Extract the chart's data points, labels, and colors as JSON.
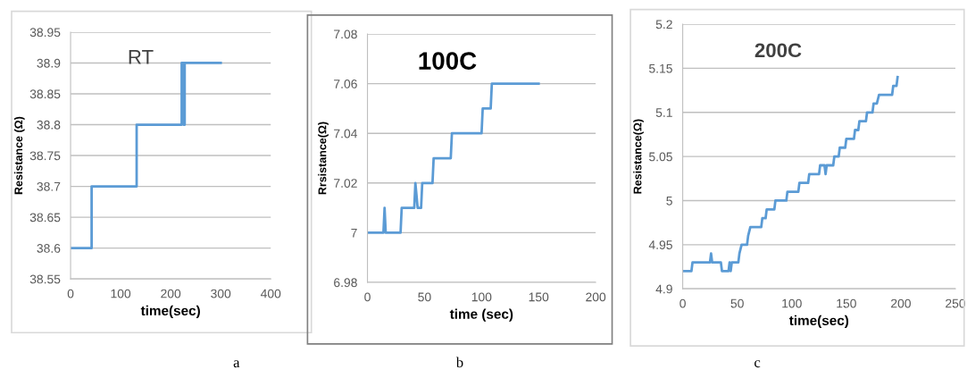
{
  "chart_data": [
    {
      "type": "line",
      "title": "RT",
      "xlabel": "time(sec)",
      "ylabel": "Resistance (Ω)",
      "annotations": [
        "a"
      ],
      "grid": "y",
      "legend": false,
      "marker": "none",
      "line_style": "solid",
      "xlim": [
        0,
        400
      ],
      "xticks": [
        0,
        100,
        200,
        300,
        400
      ],
      "ylim": [
        38.55,
        38.95
      ],
      "yticks": [
        38.55,
        38.6,
        38.65,
        38.7,
        38.75,
        38.8,
        38.85,
        38.9,
        38.95
      ],
      "series": [
        {
          "color": "#5b9bd5",
          "x": [
            0,
            42,
            42,
            132,
            132,
            222,
            222,
            226,
            226,
            228,
            228,
            300
          ],
          "values": [
            38.6,
            38.6,
            38.7,
            38.7,
            38.8,
            38.8,
            38.9,
            38.9,
            38.8,
            38.8,
            38.9,
            38.9
          ]
        }
      ]
    },
    {
      "type": "line",
      "title": "100C",
      "xlabel": "time (sec)",
      "ylabel": "Rrsistance(Ω)",
      "annotations": [
        "b"
      ],
      "grid": "y",
      "legend": false,
      "marker": "none",
      "line_style": "solid",
      "xlim": [
        0,
        200
      ],
      "xticks": [
        0,
        50,
        100,
        150,
        200
      ],
      "ylim": [
        6.98,
        7.08
      ],
      "yticks": [
        6.98,
        7,
        7.02,
        7.04,
        7.06,
        7.08
      ],
      "series": [
        {
          "color": "#5b9bd5",
          "x": [
            0,
            14,
            15,
            16,
            29,
            30,
            41,
            42,
            44,
            47,
            48,
            57,
            58,
            73,
            74,
            100,
            101,
            108,
            109,
            150
          ],
          "values": [
            7,
            7,
            7.01,
            7,
            7,
            7.01,
            7.01,
            7.02,
            7.01,
            7.01,
            7.02,
            7.02,
            7.03,
            7.03,
            7.04,
            7.04,
            7.05,
            7.05,
            7.06,
            7.06
          ]
        }
      ]
    },
    {
      "type": "line",
      "title": "200C",
      "xlabel": "time(sec)",
      "ylabel": "Resistance(Ω)",
      "annotations": [
        "c"
      ],
      "grid": "y",
      "legend": false,
      "marker": "none",
      "line_style": "solid",
      "xlim": [
        0,
        250
      ],
      "xticks": [
        0,
        50,
        100,
        150,
        200,
        250
      ],
      "ylim": [
        4.9,
        5.2
      ],
      "yticks": [
        4.9,
        4.95,
        5,
        5.05,
        5.1,
        5.15,
        5.2
      ],
      "series": [
        {
          "color": "#5b9bd5",
          "x": [
            0,
            8,
            9,
            25,
            26,
            27,
            35,
            36,
            42,
            43,
            44,
            45,
            51,
            52,
            54,
            59,
            60,
            62,
            72,
            73,
            76,
            77,
            84,
            85,
            95,
            96,
            106,
            107,
            115,
            116,
            125,
            126,
            130,
            131,
            132,
            138,
            139,
            143,
            144,
            149,
            150,
            157,
            158,
            161,
            162,
            168,
            169,
            174,
            175,
            178,
            180,
            192,
            193,
            196,
            197
          ],
          "values": [
            4.92,
            4.92,
            4.93,
            4.93,
            4.94,
            4.93,
            4.93,
            4.92,
            4.92,
            4.93,
            4.92,
            4.93,
            4.93,
            4.94,
            4.95,
            4.95,
            4.96,
            4.97,
            4.97,
            4.98,
            4.98,
            4.99,
            4.99,
            5.0,
            5.0,
            5.01,
            5.01,
            5.02,
            5.02,
            5.03,
            5.03,
            5.04,
            5.04,
            5.03,
            5.04,
            5.04,
            5.05,
            5.05,
            5.06,
            5.06,
            5.07,
            5.07,
            5.08,
            5.08,
            5.09,
            5.09,
            5.1,
            5.1,
            5.11,
            5.11,
            5.12,
            5.12,
            5.13,
            5.13,
            5.14
          ]
        }
      ]
    }
  ]
}
